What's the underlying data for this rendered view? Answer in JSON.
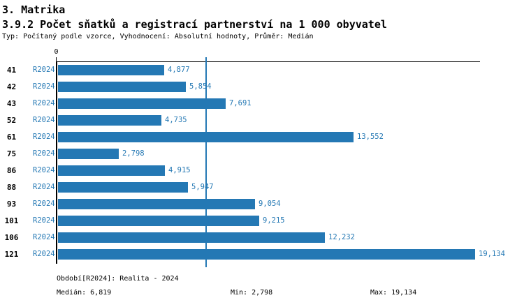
{
  "header": {
    "section_title": "3. Matrika",
    "chart_title": "3.9.2 Počet sňatků a registrací partnerství na 1 000 obyvatel",
    "subtitle": "Typ: Počítaný podle vzorce, Vyhodnocení: Absolutní hodnoty, Průměr: Medián"
  },
  "chart_data": {
    "type": "bar",
    "orientation": "horizontal",
    "title": "3.9.2 Počet sňatků a registrací partnerství na 1 000 obyvatel",
    "categories": [
      "41",
      "42",
      "43",
      "52",
      "61",
      "75",
      "86",
      "88",
      "93",
      "101",
      "106",
      "121"
    ],
    "series": [
      {
        "name": "R2024",
        "values": [
          4.877,
          5.854,
          7.691,
          4.735,
          13.552,
          2.798,
          4.915,
          5.947,
          9.054,
          9.215,
          12.232,
          19.134
        ],
        "value_labels": [
          "4,877",
          "5,854",
          "7,691",
          "4,735",
          "13,552",
          "2,798",
          "4,915",
          "5,947",
          "9,054",
          "9,215",
          "12,232",
          "19,134"
        ]
      }
    ],
    "xlabel": "",
    "ylabel": "",
    "xlim": [
      0,
      19.35
    ],
    "x_axis_tick_label": "0",
    "median_value": 6.819,
    "min_value": 2.798,
    "max_value": 19.134,
    "grid": false,
    "legend_position": "none",
    "bar_color": "#2478b4",
    "accent_text_color": "#2478b4",
    "median_line_color": "#2478b4"
  },
  "footer": {
    "period": "Období[R2024]: Realita - 2024",
    "median": "Medián: 6,819",
    "min": "Min: 2,798",
    "max": "Max: 19,134"
  }
}
